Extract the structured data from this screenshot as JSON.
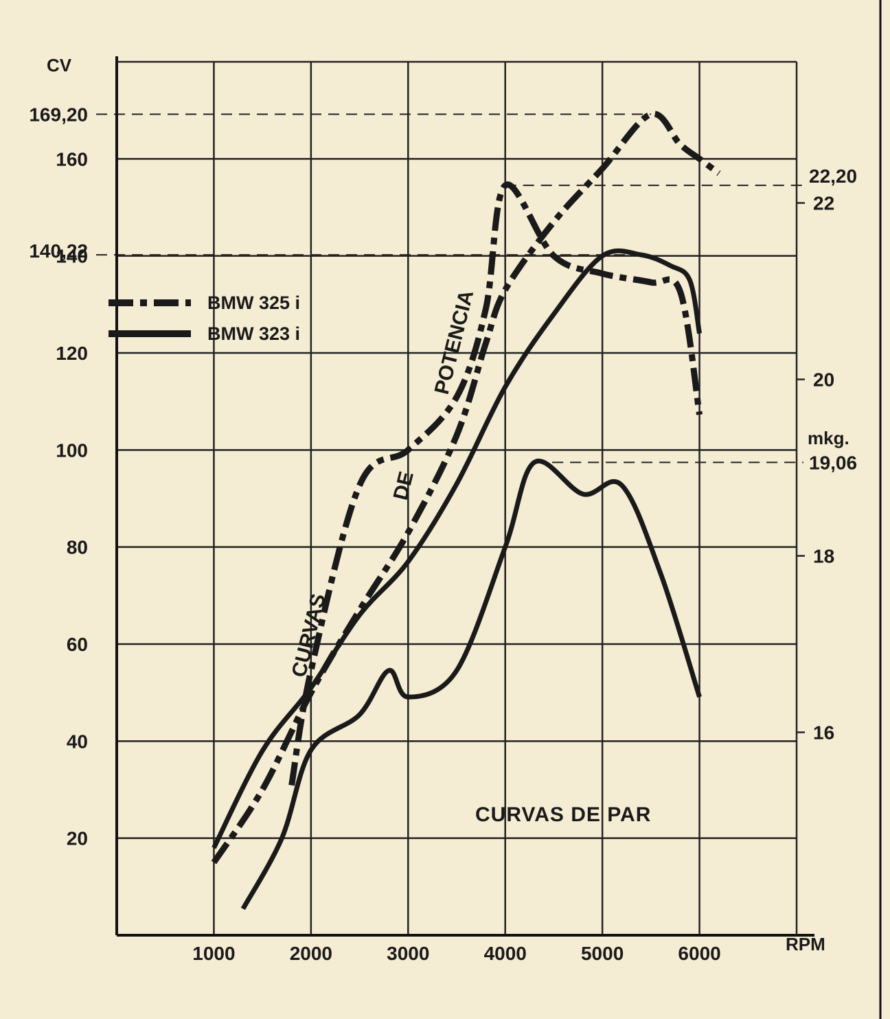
{
  "chart_data": {
    "type": "line",
    "x_label": "RPM",
    "y_label_left": "CV",
    "y_label_right": "mkg.",
    "x_ticks": [
      "1000",
      "2000",
      "3000",
      "4000",
      "5000",
      "6000"
    ],
    "x_range": [
      0,
      7000
    ],
    "y_left_ticks": [
      "20",
      "40",
      "60",
      "80",
      "100",
      "120",
      "140",
      "160"
    ],
    "y_left_extra_ticks": [
      "169,20",
      "140,22"
    ],
    "y_left_range": [
      0,
      180
    ],
    "y_right_ticks": [
      "16",
      "18",
      "20",
      "22"
    ],
    "y_right_extra_ticks": [
      "22,20",
      "19,06"
    ],
    "y_right_range": [
      13.7,
      23.6
    ],
    "grid": true,
    "legend": [
      {
        "name": "BMW 325 i",
        "style": "dash-dot"
      },
      {
        "name": "BMW 323 i",
        "style": "solid"
      }
    ],
    "annotations": {
      "power_curves": [
        "CURVAS",
        "DE",
        "POTENCIA"
      ],
      "torque_curves": "CURVAS DE PAR"
    },
    "series": [
      {
        "name": "BMW 325 i",
        "quantity": "power",
        "axis": "left",
        "style": "dash-dot",
        "points": [
          [
            1000,
            15
          ],
          [
            1500,
            30
          ],
          [
            2000,
            50
          ],
          [
            2500,
            67
          ],
          [
            3000,
            83
          ],
          [
            3500,
            103
          ],
          [
            3800,
            122
          ],
          [
            4000,
            133
          ],
          [
            4500,
            147
          ],
          [
            5000,
            158
          ],
          [
            5500,
            169.2
          ],
          [
            5800,
            163
          ],
          [
            6000,
            160
          ],
          [
            6200,
            157
          ]
        ]
      },
      {
        "name": "BMW 323 i",
        "quantity": "power",
        "axis": "left",
        "style": "solid",
        "points": [
          [
            1000,
            18
          ],
          [
            1500,
            38
          ],
          [
            2000,
            51
          ],
          [
            2500,
            66
          ],
          [
            3000,
            77
          ],
          [
            3500,
            93
          ],
          [
            4000,
            113
          ],
          [
            4500,
            128
          ],
          [
            5000,
            140
          ],
          [
            5400,
            140.22
          ],
          [
            5700,
            138
          ],
          [
            5900,
            135
          ],
          [
            6000,
            124
          ]
        ]
      },
      {
        "name": "BMW 325 i",
        "quantity": "torque",
        "axis": "right",
        "style": "dash-dot",
        "points": [
          [
            1800,
            15.4
          ],
          [
            2000,
            16.7
          ],
          [
            2500,
            18.8
          ],
          [
            3000,
            19.2
          ],
          [
            3500,
            19.8
          ],
          [
            3800,
            20.8
          ],
          [
            4000,
            22.2
          ],
          [
            4500,
            21.4
          ],
          [
            5000,
            21.2
          ],
          [
            5500,
            21.1
          ],
          [
            5800,
            21.0
          ],
          [
            6000,
            19.6
          ]
        ]
      },
      {
        "name": "BMW 323 i",
        "quantity": "torque",
        "axis": "right",
        "style": "solid",
        "points": [
          [
            1300,
            14.0
          ],
          [
            1700,
            14.8
          ],
          [
            2000,
            15.8
          ],
          [
            2500,
            16.2
          ],
          [
            2800,
            16.7
          ],
          [
            3000,
            16.4
          ],
          [
            3500,
            16.7
          ],
          [
            4000,
            18.1
          ],
          [
            4300,
            19.06
          ],
          [
            4800,
            18.7
          ],
          [
            5200,
            18.8
          ],
          [
            5600,
            17.8
          ],
          [
            6000,
            16.4
          ]
        ]
      }
    ]
  }
}
